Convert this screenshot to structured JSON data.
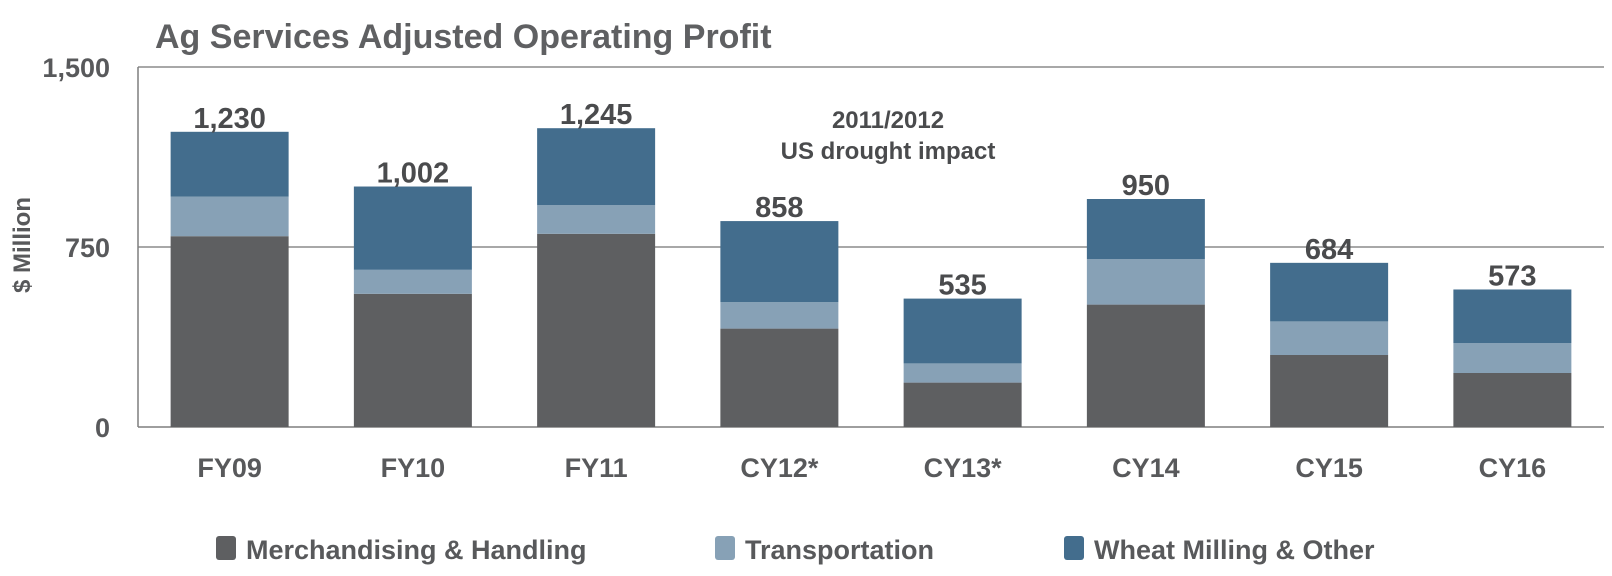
{
  "colors": {
    "merchandising": "#5e5f61",
    "transportation": "#87a1b6",
    "wheat": "#436d8d",
    "axis": "#7f7f7f",
    "grid": "#8c8c8c"
  },
  "chart_data": {
    "type": "bar",
    "stacked": true,
    "title": "Ag Services Adjusted Operating Profit",
    "ylabel": "$ Million",
    "xlabel": "",
    "ylim": [
      0,
      1500
    ],
    "yticks": [
      0,
      750,
      1500
    ],
    "ytick_labels": [
      "0",
      "750",
      "1,500"
    ],
    "grid": true,
    "legend_position": "bottom",
    "categories": [
      "FY09",
      "FY10",
      "FY11",
      "CY12*",
      "CY13*",
      "CY14",
      "CY15",
      "CY16"
    ],
    "series": [
      {
        "name": "Merchandising & Handling",
        "color_key": "merchandising",
        "values": [
          795,
          555,
          805,
          410,
          185,
          510,
          300,
          225
        ]
      },
      {
        "name": "Transportation",
        "color_key": "transportation",
        "values": [
          165,
          100,
          120,
          110,
          80,
          190,
          140,
          125
        ]
      },
      {
        "name": "Wheat Milling & Other",
        "color_key": "wheat",
        "values": [
          270,
          347,
          320,
          338,
          270,
          250,
          244,
          223
        ]
      }
    ],
    "totals": [
      1230,
      1002,
      1245,
      858,
      535,
      950,
      684,
      573
    ],
    "total_labels": [
      "1,230",
      "1,002",
      "1,245",
      "858",
      "535",
      "950",
      "684",
      "573"
    ],
    "annotation": [
      "2011/2012",
      "US drought impact"
    ]
  }
}
